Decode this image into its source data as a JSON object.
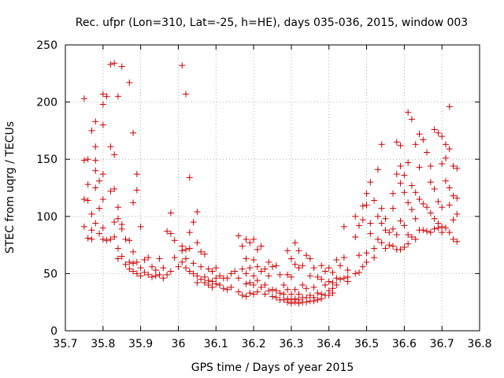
{
  "chart_data": {
    "type": "scatter",
    "title": "Rec. ufpr (Lon=310, Lat=-25, h=HE), days 035-036, 2015, window 003",
    "xlabel": "GPS time / Days of year 2015",
    "ylabel": "STEC from uqrg / TECUs",
    "xlim": [
      35.7,
      36.8
    ],
    "ylim": [
      0,
      250
    ],
    "x_ticks": [
      "35.7",
      "35.8",
      "35.9",
      "36",
      "36.1",
      "36.2",
      "36.3",
      "36.4",
      "36.5",
      "36.6",
      "36.7",
      "36.8"
    ],
    "y_ticks": [
      "0",
      "50",
      "100",
      "150",
      "200",
      "250"
    ],
    "grid": true,
    "marker": "+",
    "color": "#cc0000",
    "points": [
      [
        35.75,
        203
      ],
      [
        35.75,
        149
      ],
      [
        35.75,
        115
      ],
      [
        35.75,
        91
      ],
      [
        35.76,
        114
      ],
      [
        35.76,
        81
      ],
      [
        35.76,
        150
      ],
      [
        35.76,
        128
      ],
      [
        35.77,
        175
      ],
      [
        35.77,
        102
      ],
      [
        35.77,
        88
      ],
      [
        35.77,
        80
      ],
      [
        35.78,
        183
      ],
      [
        35.78,
        161
      ],
      [
        35.78,
        149
      ],
      [
        35.78,
        140
      ],
      [
        35.78,
        125
      ],
      [
        35.78,
        94
      ],
      [
        35.79,
        131
      ],
      [
        35.79,
        107
      ],
      [
        35.79,
        85
      ],
      [
        35.8,
        207
      ],
      [
        35.8,
        198
      ],
      [
        35.8,
        180
      ],
      [
        35.8,
        137
      ],
      [
        35.8,
        115
      ],
      [
        35.8,
        90
      ],
      [
        35.8,
        80
      ],
      [
        35.81,
        205
      ],
      [
        35.81,
        79
      ],
      [
        35.82,
        233
      ],
      [
        35.82,
        161
      ],
      [
        35.82,
        122
      ],
      [
        35.82,
        80
      ],
      [
        35.83,
        234
      ],
      [
        35.83,
        154
      ],
      [
        35.83,
        124
      ],
      [
        35.83,
        95
      ],
      [
        35.83,
        82
      ],
      [
        35.84,
        205
      ],
      [
        35.84,
        108
      ],
      [
        35.84,
        98
      ],
      [
        35.84,
        72
      ],
      [
        35.84,
        63
      ],
      [
        35.85,
        231
      ],
      [
        35.85,
        93
      ],
      [
        35.85,
        89
      ],
      [
        35.85,
        65
      ],
      [
        35.86,
        80
      ],
      [
        35.86,
        58
      ],
      [
        35.87,
        217
      ],
      [
        35.87,
        79
      ],
      [
        35.87,
        60
      ],
      [
        35.87,
        54
      ],
      [
        35.88,
        173
      ],
      [
        35.88,
        112
      ],
      [
        35.88,
        69
      ],
      [
        35.88,
        59
      ],
      [
        35.88,
        52
      ],
      [
        35.89,
        137
      ],
      [
        35.89,
        123
      ],
      [
        35.89,
        60
      ],
      [
        35.89,
        50
      ],
      [
        35.9,
        91
      ],
      [
        35.9,
        55
      ],
      [
        35.9,
        48
      ],
      [
        35.91,
        62
      ],
      [
        35.91,
        51
      ],
      [
        35.92,
        64
      ],
      [
        35.92,
        49
      ],
      [
        35.93,
        56
      ],
      [
        35.93,
        47
      ],
      [
        35.94,
        53
      ],
      [
        35.94,
        48
      ],
      [
        35.95,
        63
      ],
      [
        35.95,
        49
      ],
      [
        35.96,
        55
      ],
      [
        35.96,
        46
      ],
      [
        35.97,
        87
      ],
      [
        35.97,
        49
      ],
      [
        35.98,
        85
      ],
      [
        35.98,
        52
      ],
      [
        35.98,
        103
      ],
      [
        35.99,
        64
      ],
      [
        35.99,
        79
      ],
      [
        36.0,
        56
      ],
      [
        36.01,
        232
      ],
      [
        36.01,
        74
      ],
      [
        36.01,
        70
      ],
      [
        36.01,
        60
      ],
      [
        36.02,
        207
      ],
      [
        36.02,
        71
      ],
      [
        36.02,
        63
      ],
      [
        36.02,
        55
      ],
      [
        36.03,
        134
      ],
      [
        36.03,
        86
      ],
      [
        36.03,
        72
      ],
      [
        36.03,
        52
      ],
      [
        36.04,
        95
      ],
      [
        36.04,
        59
      ],
      [
        36.04,
        50
      ],
      [
        36.05,
        104
      ],
      [
        36.05,
        77
      ],
      [
        36.05,
        48
      ],
      [
        36.05,
        42
      ],
      [
        36.06,
        69
      ],
      [
        36.06,
        56
      ],
      [
        36.06,
        45
      ],
      [
        36.07,
        67
      ],
      [
        36.07,
        47
      ],
      [
        36.07,
        42
      ],
      [
        36.08,
        54
      ],
      [
        36.08,
        44
      ],
      [
        36.08,
        40
      ],
      [
        36.09,
        52
      ],
      [
        36.09,
        43
      ],
      [
        36.09,
        38
      ],
      [
        36.1,
        55
      ],
      [
        36.1,
        46
      ],
      [
        36.1,
        41
      ],
      [
        36.11,
        48
      ],
      [
        36.11,
        40
      ],
      [
        36.12,
        46
      ],
      [
        36.12,
        37
      ],
      [
        36.13,
        46
      ],
      [
        36.13,
        36
      ],
      [
        36.14,
        50
      ],
      [
        36.14,
        38
      ],
      [
        36.15,
        52
      ],
      [
        36.16,
        83
      ],
      [
        36.16,
        46
      ],
      [
        36.16,
        34
      ],
      [
        36.17,
        74
      ],
      [
        36.17,
        54
      ],
      [
        36.17,
        31
      ],
      [
        36.18,
        80
      ],
      [
        36.18,
        63
      ],
      [
        36.18,
        50
      ],
      [
        36.18,
        41
      ],
      [
        36.18,
        30
      ],
      [
        36.19,
        77
      ],
      [
        36.19,
        55
      ],
      [
        36.19,
        42
      ],
      [
        36.19,
        33
      ],
      [
        36.2,
        80
      ],
      [
        36.2,
        62
      ],
      [
        36.2,
        48
      ],
      [
        36.2,
        40
      ],
      [
        36.2,
        32
      ],
      [
        36.21,
        71
      ],
      [
        36.21,
        56
      ],
      [
        36.21,
        44
      ],
      [
        36.21,
        34
      ],
      [
        36.22,
        74
      ],
      [
        36.22,
        52
      ],
      [
        36.22,
        38
      ],
      [
        36.23,
        54
      ],
      [
        36.23,
        40
      ],
      [
        36.23,
        32
      ],
      [
        36.24,
        60
      ],
      [
        36.24,
        48
      ],
      [
        36.24,
        35
      ],
      [
        36.25,
        56
      ],
      [
        36.25,
        36
      ],
      [
        36.25,
        30
      ],
      [
        36.26,
        57
      ],
      [
        36.26,
        35
      ],
      [
        36.26,
        29
      ],
      [
        36.27,
        49
      ],
      [
        36.27,
        33
      ],
      [
        36.27,
        27
      ],
      [
        36.28,
        40
      ],
      [
        36.28,
        32
      ],
      [
        36.28,
        27
      ],
      [
        36.29,
        70
      ],
      [
        36.29,
        49
      ],
      [
        36.29,
        36
      ],
      [
        36.29,
        28
      ],
      [
        36.29,
        25
      ],
      [
        36.3,
        63
      ],
      [
        36.3,
        47
      ],
      [
        36.3,
        32
      ],
      [
        36.3,
        27
      ],
      [
        36.3,
        24
      ],
      [
        36.31,
        77
      ],
      [
        36.31,
        58
      ],
      [
        36.31,
        36
      ],
      [
        36.31,
        28
      ],
      [
        36.31,
        25
      ],
      [
        36.32,
        70
      ],
      [
        36.32,
        55
      ],
      [
        36.32,
        32
      ],
      [
        36.32,
        27
      ],
      [
        36.32,
        24
      ],
      [
        36.33,
        57
      ],
      [
        36.33,
        40
      ],
      [
        36.33,
        29
      ],
      [
        36.33,
        25
      ],
      [
        36.34,
        66
      ],
      [
        36.34,
        37
      ],
      [
        36.34,
        29
      ],
      [
        36.34,
        25
      ],
      [
        36.35,
        63
      ],
      [
        36.35,
        48
      ],
      [
        36.35,
        31
      ],
      [
        36.35,
        26
      ],
      [
        36.36,
        55
      ],
      [
        36.36,
        38
      ],
      [
        36.36,
        29
      ],
      [
        36.36,
        26
      ],
      [
        36.37,
        47
      ],
      [
        36.37,
        33
      ],
      [
        36.37,
        27
      ],
      [
        36.38,
        57
      ],
      [
        36.38,
        45
      ],
      [
        36.38,
        32
      ],
      [
        36.38,
        28
      ],
      [
        36.39,
        52
      ],
      [
        36.39,
        40
      ],
      [
        36.39,
        31
      ],
      [
        36.4,
        55
      ],
      [
        36.4,
        43
      ],
      [
        36.4,
        35
      ],
      [
        36.4,
        31
      ],
      [
        36.41,
        51
      ],
      [
        36.41,
        42
      ],
      [
        36.41,
        37
      ],
      [
        36.41,
        33
      ],
      [
        36.42,
        62
      ],
      [
        36.42,
        46
      ],
      [
        36.42,
        40
      ],
      [
        36.43,
        57
      ],
      [
        36.43,
        45
      ],
      [
        36.44,
        91
      ],
      [
        36.44,
        64
      ],
      [
        36.44,
        46
      ],
      [
        36.45,
        53
      ],
      [
        36.45,
        47
      ],
      [
        36.45,
        43
      ],
      [
        36.47,
        100
      ],
      [
        36.47,
        82
      ],
      [
        36.47,
        50
      ],
      [
        36.48,
        92
      ],
      [
        36.48,
        66
      ],
      [
        36.48,
        51
      ],
      [
        36.49,
        109
      ],
      [
        36.49,
        97
      ],
      [
        36.49,
        56
      ],
      [
        36.5,
        120
      ],
      [
        36.5,
        110
      ],
      [
        36.5,
        68
      ],
      [
        36.5,
        60
      ],
      [
        36.51,
        130
      ],
      [
        36.51,
        94
      ],
      [
        36.51,
        85
      ],
      [
        36.52,
        114
      ],
      [
        36.52,
        72
      ],
      [
        36.52,
        64
      ],
      [
        36.53,
        141
      ],
      [
        36.53,
        100
      ],
      [
        36.53,
        80
      ],
      [
        36.54,
        163
      ],
      [
        36.54,
        107
      ],
      [
        36.54,
        94
      ],
      [
        36.54,
        77
      ],
      [
        36.55,
        98
      ],
      [
        36.55,
        88
      ],
      [
        36.55,
        72
      ],
      [
        36.56,
        86
      ],
      [
        36.56,
        75
      ],
      [
        36.57,
        120
      ],
      [
        36.57,
        107
      ],
      [
        36.57,
        89
      ],
      [
        36.57,
        74
      ],
      [
        36.58,
        165
      ],
      [
        36.58,
        137
      ],
      [
        36.58,
        84
      ],
      [
        36.58,
        71
      ],
      [
        36.59,
        162
      ],
      [
        36.59,
        144
      ],
      [
        36.59,
        129
      ],
      [
        36.59,
        96
      ],
      [
        36.59,
        71
      ],
      [
        36.6,
        136
      ],
      [
        36.6,
        121
      ],
      [
        36.6,
        92
      ],
      [
        36.6,
        73
      ],
      [
        36.61,
        191
      ],
      [
        36.61,
        147
      ],
      [
        36.61,
        112
      ],
      [
        36.61,
        84
      ],
      [
        36.61,
        76
      ],
      [
        36.62,
        185
      ],
      [
        36.62,
        127
      ],
      [
        36.62,
        106
      ],
      [
        36.62,
        82
      ],
      [
        36.63,
        163
      ],
      [
        36.63,
        121
      ],
      [
        36.63,
        98
      ],
      [
        36.63,
        80
      ],
      [
        36.64,
        172
      ],
      [
        36.64,
        143
      ],
      [
        36.64,
        115
      ],
      [
        36.64,
        88
      ],
      [
        36.65,
        167
      ],
      [
        36.65,
        111
      ],
      [
        36.65,
        88
      ],
      [
        36.66,
        156
      ],
      [
        36.66,
        108
      ],
      [
        36.66,
        87
      ],
      [
        36.67,
        144
      ],
      [
        36.67,
        130
      ],
      [
        36.67,
        103
      ],
      [
        36.67,
        86
      ],
      [
        36.68,
        176
      ],
      [
        36.68,
        124
      ],
      [
        36.68,
        98
      ],
      [
        36.68,
        89
      ],
      [
        36.69,
        173
      ],
      [
        36.69,
        113
      ],
      [
        36.69,
        94
      ],
      [
        36.69,
        90
      ],
      [
        36.7,
        170
      ],
      [
        36.7,
        146
      ],
      [
        36.7,
        108
      ],
      [
        36.7,
        91
      ],
      [
        36.7,
        86
      ],
      [
        36.71,
        163
      ],
      [
        36.71,
        151
      ],
      [
        36.71,
        131
      ],
      [
        36.71,
        90
      ],
      [
        36.72,
        196
      ],
      [
        36.72,
        159
      ],
      [
        36.72,
        125
      ],
      [
        36.72,
        110
      ],
      [
        36.72,
        86
      ],
      [
        36.73,
        144
      ],
      [
        36.73,
        118
      ],
      [
        36.73,
        97
      ],
      [
        36.73,
        80
      ],
      [
        36.74,
        142
      ],
      [
        36.74,
        116
      ],
      [
        36.74,
        102
      ],
      [
        36.74,
        78
      ]
    ]
  }
}
